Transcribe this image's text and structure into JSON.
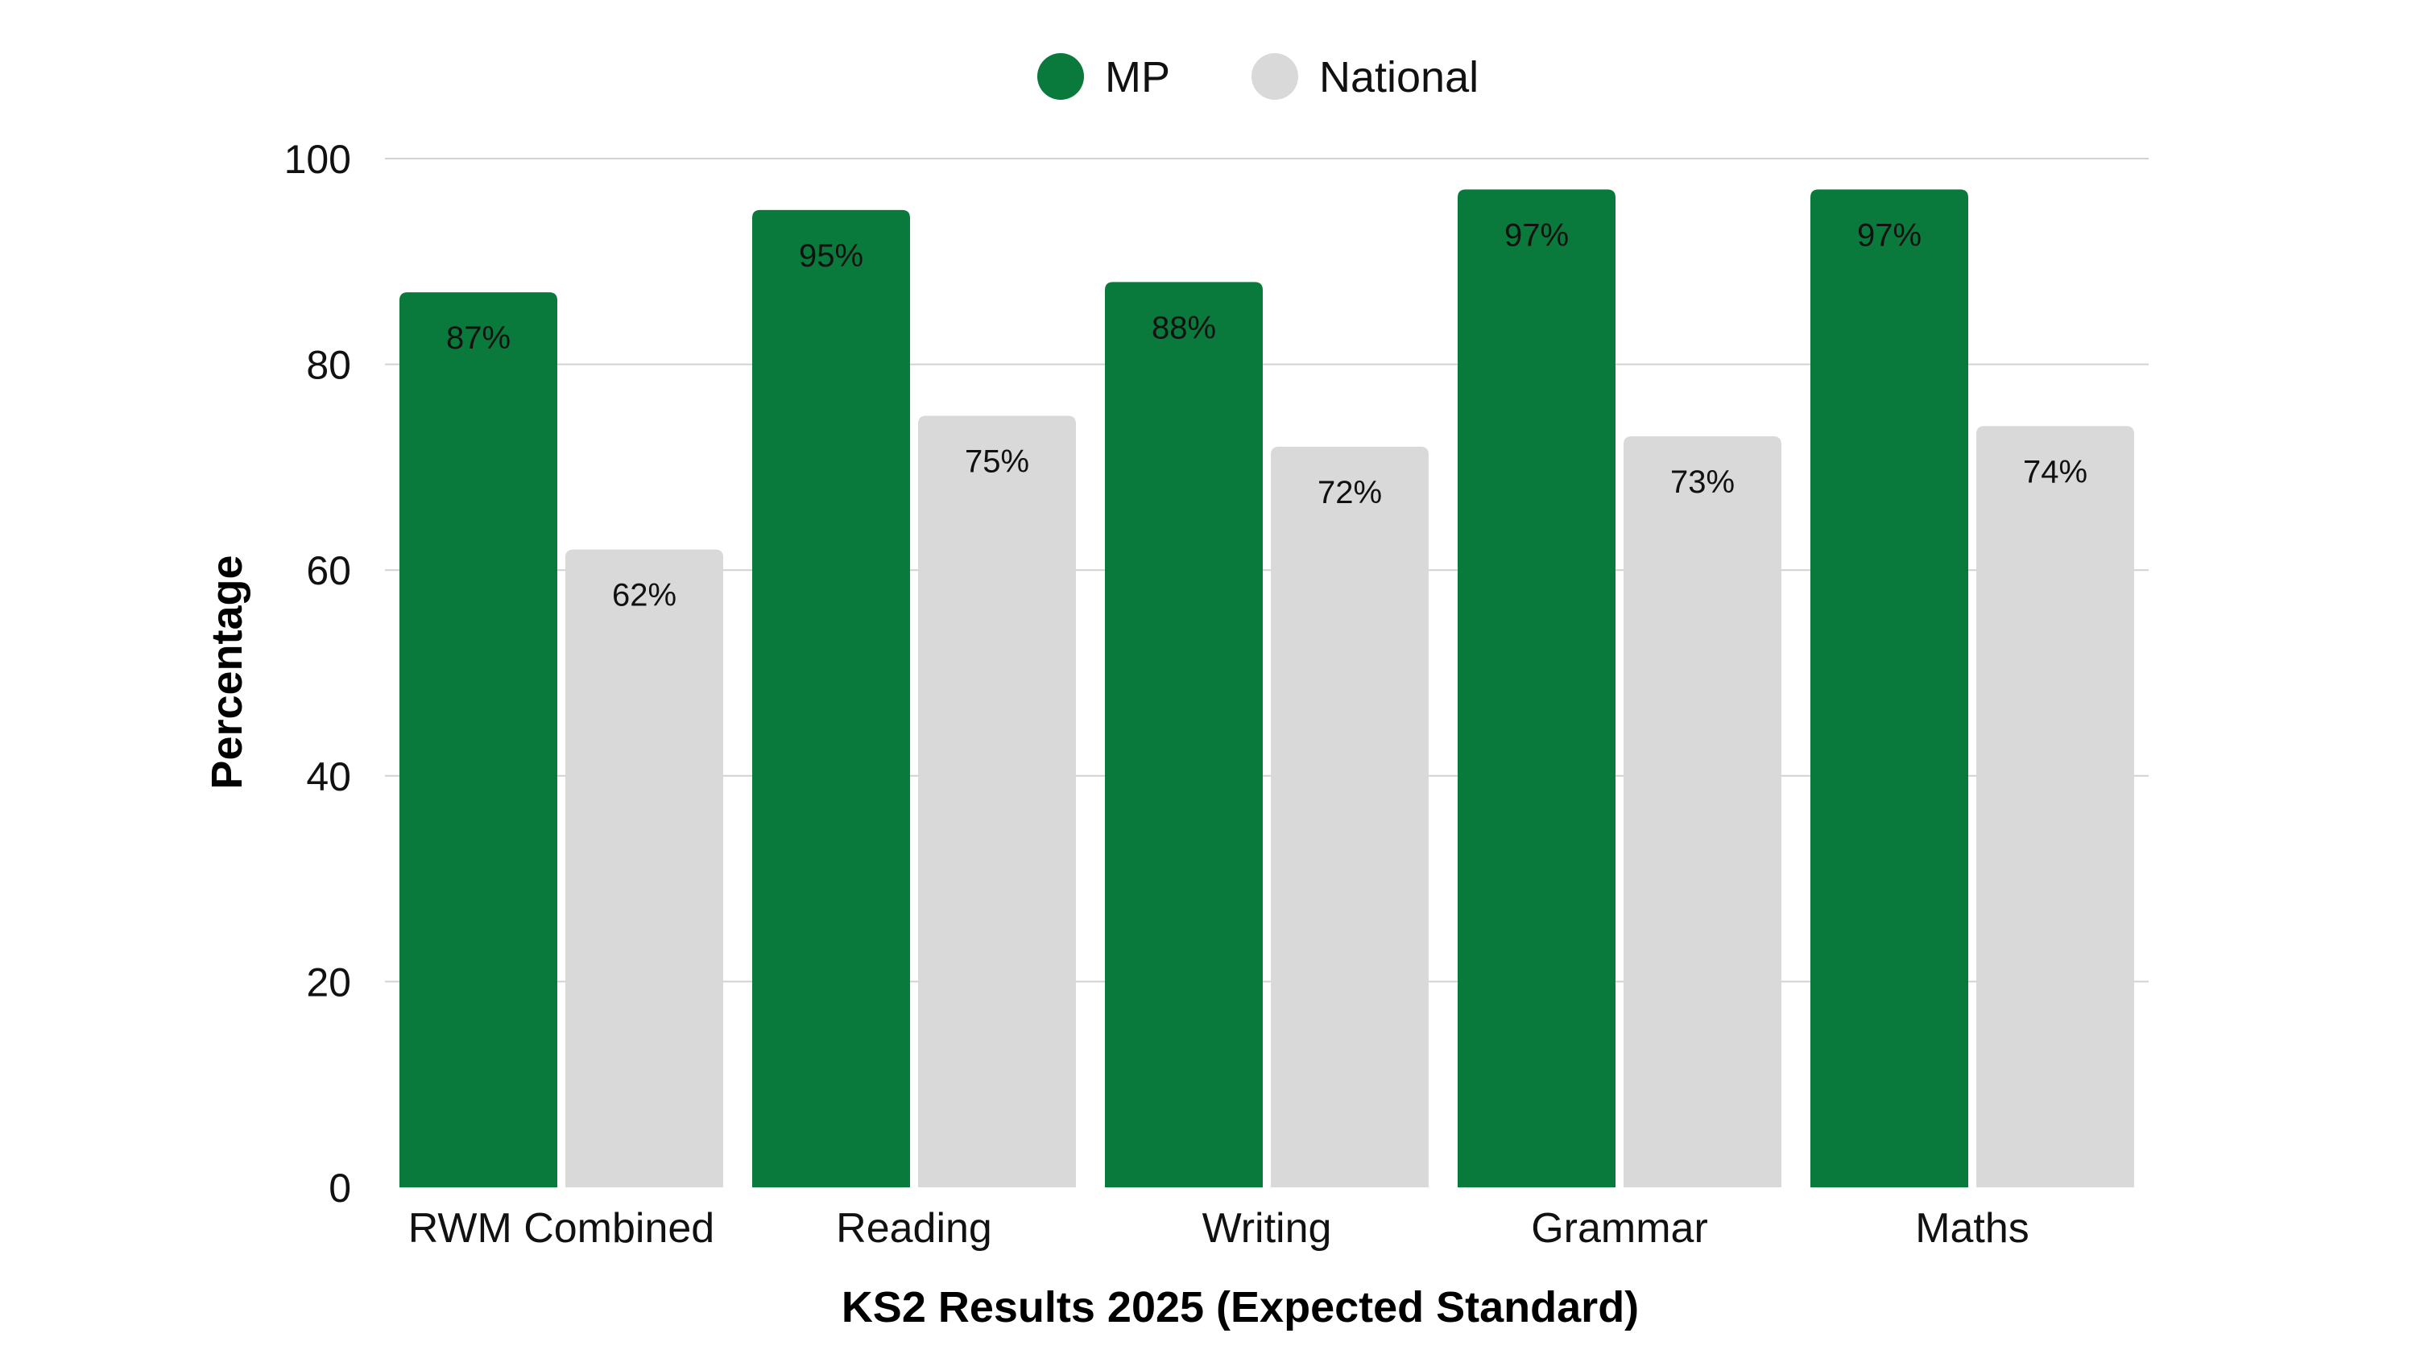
{
  "chart_data": {
    "type": "bar",
    "title": "",
    "xlabel": "KS2 Results 2025 (Expected Standard)",
    "ylabel": "Percentage",
    "ylim": [
      0,
      100
    ],
    "yticks": [
      "0",
      "20",
      "40",
      "60",
      "80",
      "100"
    ],
    "grid": true,
    "legend_position": "top-center",
    "categories": [
      "RWM Combined",
      "Reading",
      "Writing",
      "Grammar",
      "Maths"
    ],
    "series": [
      {
        "name": "MP",
        "color": "#097a3c",
        "values": [
          87,
          95,
          88,
          97,
          97
        ],
        "labels": [
          "87%",
          "95%",
          "88%",
          "97%",
          "97%"
        ]
      },
      {
        "name": "National",
        "color": "#d9d9d9",
        "values": [
          62,
          75,
          72,
          73,
          74
        ],
        "labels": [
          "62%",
          "75%",
          "72%",
          "73%",
          "74%"
        ]
      }
    ]
  }
}
